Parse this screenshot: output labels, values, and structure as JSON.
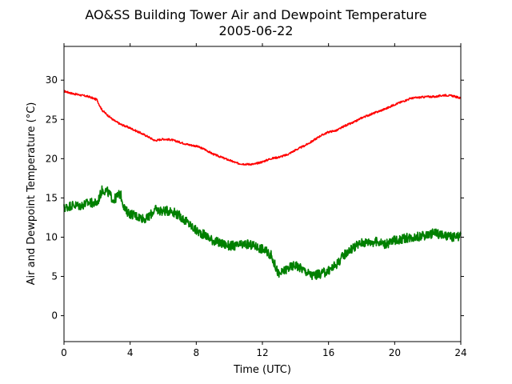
{
  "chart_data": {
    "type": "line",
    "title": "AO&SS Building Tower Air and Dewpoint Temperature",
    "subtitle": "2005-06-22",
    "xlabel": "Time (UTC)",
    "ylabel": "Air and Dewpoint Temperature (°C)",
    "xlim": [
      0,
      24
    ],
    "ylim": [
      -3.3,
      34.3
    ],
    "xticks": [
      0,
      4,
      8,
      12,
      16,
      20,
      24
    ],
    "yticks": [
      0,
      5,
      10,
      15,
      20,
      25,
      30
    ],
    "grid": false,
    "series": [
      {
        "color": "#ff0000",
        "x": [
          0,
          0.5,
          1,
          1.5,
          2,
          2.1,
          2.3,
          2.6,
          3,
          3.4,
          4,
          4.5,
          5,
          5.5,
          6,
          6.5,
          7,
          7.5,
          8,
          8.5,
          9,
          9.5,
          10,
          10.5,
          11,
          11.5,
          12,
          12.5,
          13,
          13.5,
          14,
          14.5,
          15,
          15.5,
          16,
          16.5,
          17,
          17.5,
          18,
          18.5,
          19,
          19.5,
          20,
          20.5,
          21,
          21.5,
          22,
          22.5,
          23,
          23.5,
          24
        ],
        "y": [
          28.6,
          28.3,
          28.1,
          27.9,
          27.5,
          27.0,
          26.2,
          25.6,
          24.9,
          24.4,
          23.9,
          23.4,
          22.9,
          22.3,
          22.5,
          22.4,
          22.1,
          21.8,
          21.6,
          21.2,
          20.6,
          20.2,
          19.8,
          19.4,
          19.3,
          19.3,
          19.6,
          20.0,
          20.2,
          20.5,
          21.1,
          21.6,
          22.2,
          22.9,
          23.4,
          23.6,
          24.2,
          24.6,
          25.2,
          25.6,
          26.0,
          26.4,
          26.9,
          27.3,
          27.7,
          27.8,
          27.9,
          27.9,
          28.1,
          28.0,
          27.7
        ]
      },
      {
        "color": "#008000",
        "x": [
          0,
          0.5,
          1,
          1.5,
          2,
          2.3,
          2.6,
          3,
          3.4,
          3.7,
          4,
          4.5,
          5,
          5.5,
          6,
          6.5,
          7,
          7.5,
          8,
          8.5,
          9,
          9.5,
          10,
          10.5,
          11,
          11.5,
          12,
          12.5,
          13,
          13.5,
          14,
          14.5,
          15,
          15.5,
          16,
          16.5,
          17,
          17.5,
          18,
          18.5,
          19,
          19.5,
          20,
          20.5,
          21,
          21.5,
          22,
          22.5,
          23,
          23.5,
          24
        ],
        "y": [
          13.7,
          14.1,
          14.0,
          14.4,
          14.3,
          16.0,
          15.9,
          14.7,
          15.6,
          13.4,
          13.0,
          12.6,
          12.3,
          13.5,
          13.3,
          13.4,
          12.7,
          11.8,
          10.8,
          10.3,
          9.6,
          9.2,
          8.9,
          8.9,
          9.1,
          8.9,
          8.5,
          7.8,
          5.2,
          6.0,
          6.5,
          5.8,
          5.1,
          5.3,
          5.7,
          6.6,
          7.9,
          8.7,
          9.3,
          9.4,
          9.4,
          9.1,
          9.6,
          9.8,
          10.0,
          10.1,
          10.3,
          10.6,
          10.1,
          10.0,
          10.1
        ]
      }
    ]
  }
}
